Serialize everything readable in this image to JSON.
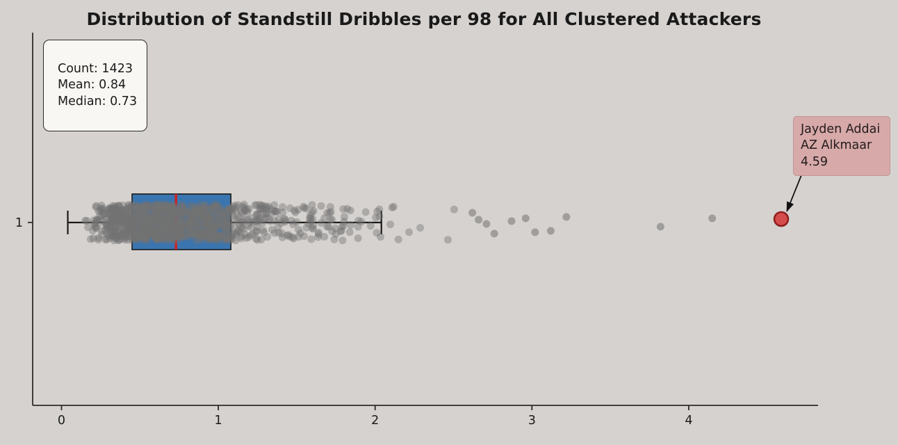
{
  "title": "Distribution of Standstill Dribbles per 98 for All Clustered Attackers",
  "stats": {
    "lines": [
      "Count: 1423",
      "Mean: 0.84",
      "Median: 0.73"
    ]
  },
  "annotation": {
    "lines": [
      "Jayden Addai",
      "AZ Alkmaar",
      "4.59"
    ]
  },
  "axes": {
    "x_ticks": [
      "0",
      "1",
      "2",
      "3",
      "4"
    ],
    "y_ticks": [
      "1"
    ]
  },
  "chart_data": {
    "type": "boxplot-strip",
    "title": "Distribution of Standstill Dribbles per 98 for All Clustered Attackers",
    "xlabel": "",
    "ylabel": "",
    "xlim": [
      -0.18,
      4.82
    ],
    "x_tick_values": [
      0,
      1,
      2,
      3,
      4
    ],
    "y_tick_values": [
      1
    ],
    "count": 1423,
    "mean": 0.84,
    "median": 0.73,
    "box": {
      "q1": 0.45,
      "q3": 1.08,
      "median": 0.73,
      "whisker_low": 0.04,
      "whisker_high": 2.04
    },
    "strip_range": [
      0.03,
      2.58
    ],
    "outliers": [
      {
        "x": 2.62,
        "dy": -14
      },
      {
        "x": 2.66,
        "dy": -4
      },
      {
        "x": 2.71,
        "dy": 2
      },
      {
        "x": 2.76,
        "dy": 16
      },
      {
        "x": 2.87,
        "dy": -2
      },
      {
        "x": 2.96,
        "dy": -6
      },
      {
        "x": 3.02,
        "dy": 14
      },
      {
        "x": 3.12,
        "dy": 12
      },
      {
        "x": 3.22,
        "dy": -8
      },
      {
        "x": 3.82,
        "dy": 6
      },
      {
        "x": 4.15,
        "dy": -6
      }
    ],
    "highlight": {
      "player": "Jayden Addai",
      "team": "AZ Alkmaar",
      "value": 4.59
    },
    "colors": {
      "background": "#d6d2cf",
      "box_fill": "#3b75af",
      "box_edge": "#1a1a1a",
      "median_line": "#cc2222",
      "whisker": "#1a1a1a",
      "point": "#737373",
      "highlight_fill": "#d43d3d",
      "highlight_edge": "#8e1d1d",
      "annotation_bg": "#d7a9a9",
      "stats_bg": "#f9f7f3"
    },
    "legend": "none",
    "grid": "off"
  }
}
